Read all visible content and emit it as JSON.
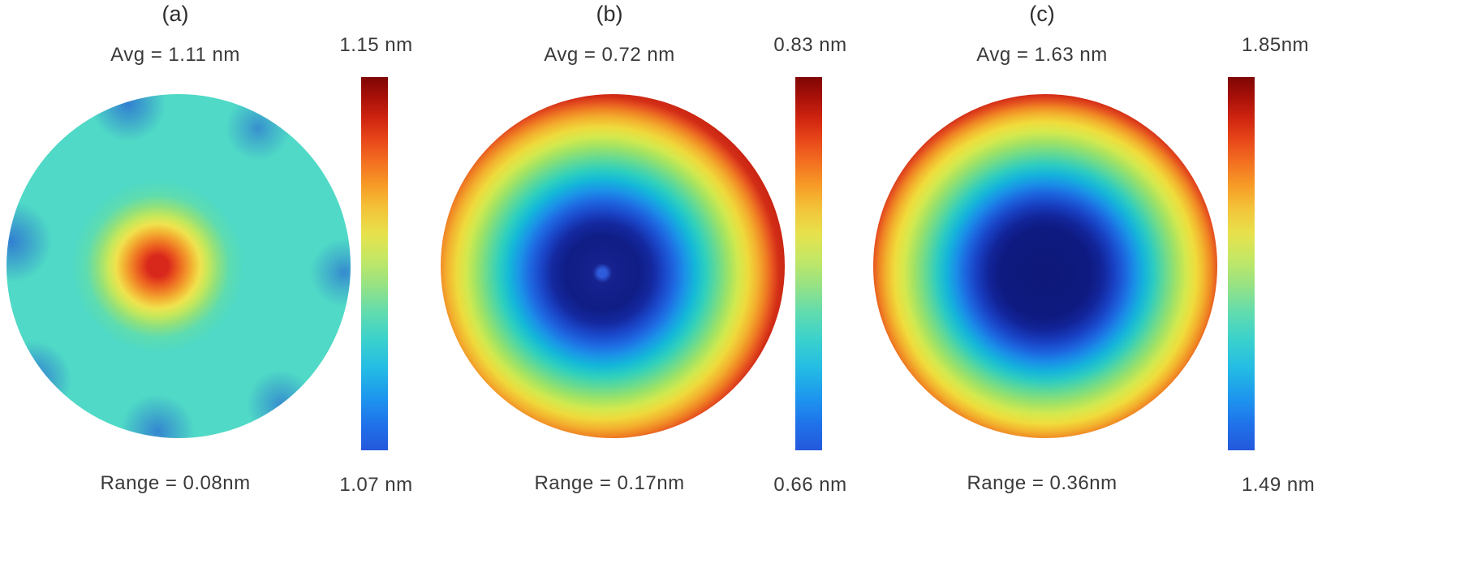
{
  "figure": {
    "panels": [
      {
        "label": "(a)",
        "avg": "Avg = 1.11 nm",
        "range": "Range = 0.08nm",
        "colorbar_max": "1.15 nm",
        "colorbar_min": "1.07 nm"
      },
      {
        "label": "(b)",
        "avg": "Avg = 0.72 nm",
        "range": "Range = 0.17nm",
        "colorbar_max": "0.83 nm",
        "colorbar_min": "0.66 nm"
      },
      {
        "label": "(c)",
        "avg": "Avg = 1.63 nm",
        "range": "Range = 0.36nm",
        "colorbar_max": "1.85nm",
        "colorbar_min": "1.49 nm"
      }
    ]
  },
  "chart_data": [
    {
      "type": "heatmap",
      "title": "(a)",
      "shape": "circular wafer map",
      "average_nm": 1.11,
      "range_nm": 0.08,
      "colorbar": {
        "min_nm": 1.07,
        "max_nm": 1.15,
        "unit": "nm",
        "colormap": "jet",
        "orientation": "vertical",
        "position": "right",
        "top_label": "1.15 nm",
        "bottom_label": "1.07 nm",
        "colormap_stops": [
          "#7f0605",
          "#e8481a",
          "#f79b26",
          "#e7e24c",
          "#62dcae",
          "#24bce4",
          "#2458dc"
        ]
      },
      "pattern": "mostly uniform mid-level (~1.11 nm, cyan-green) with a small hot spot peaking near 1.15 nm slightly left of center and low (~1.07 nm, blue) patches around the rim",
      "radial_profile": {
        "normalized_radius": [
          0,
          0.07,
          0.15,
          0.3,
          0.6,
          0.95,
          1.0
        ],
        "value_nm": [
          1.15,
          1.13,
          1.12,
          1.11,
          1.11,
          1.09,
          1.08
        ]
      }
    },
    {
      "type": "heatmap",
      "title": "(b)",
      "shape": "circular wafer map",
      "average_nm": 0.72,
      "range_nm": 0.17,
      "colorbar": {
        "min_nm": 0.66,
        "max_nm": 0.83,
        "unit": "nm",
        "colormap": "jet",
        "orientation": "vertical",
        "position": "right",
        "top_label": "0.83 nm",
        "bottom_label": "0.66 nm"
      },
      "pattern": "concentric bowl: minimum (~0.66 nm, dark blue) slightly left of center rising monotonically to maximum (~0.83 nm, red) at the edge",
      "radial_profile": {
        "normalized_radius": [
          0,
          0.2,
          0.4,
          0.6,
          0.8,
          1.0
        ],
        "value_nm": [
          0.66,
          0.68,
          0.71,
          0.75,
          0.8,
          0.83
        ]
      }
    },
    {
      "type": "heatmap",
      "title": "(c)",
      "shape": "circular wafer map",
      "average_nm": 1.63,
      "range_nm": 0.36,
      "colorbar": {
        "min_nm": 1.49,
        "max_nm": 1.85,
        "unit": "nm",
        "colormap": "jet",
        "orientation": "vertical",
        "position": "right",
        "top_label": "1.85nm",
        "bottom_label": "1.49 nm"
      },
      "pattern": "concentric bowl: broad minimum (~1.49 nm, dark blue) at center rising monotonically to maximum (~1.85 nm, red) at the edge",
      "radial_profile": {
        "normalized_radius": [
          0,
          0.2,
          0.4,
          0.6,
          0.8,
          1.0
        ],
        "value_nm": [
          1.49,
          1.52,
          1.59,
          1.68,
          1.78,
          1.85
        ]
      }
    }
  ]
}
